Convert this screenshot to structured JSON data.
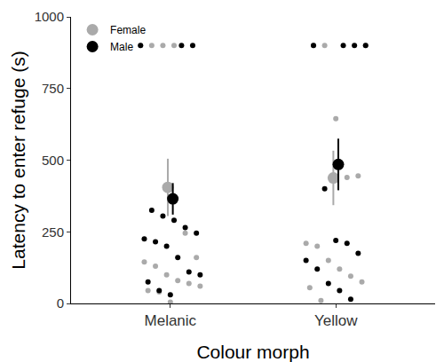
{
  "chart_data": {
    "type": "scatter",
    "x_label": "Colour morph",
    "y_label": "Latency to enter refuge (s)",
    "categories": [
      "Melanic",
      "Yellow"
    ],
    "ylim": [
      0,
      1000
    ],
    "yticks": [
      0,
      250,
      500,
      750,
      1000
    ],
    "grid": false,
    "legend": "top left",
    "series": [
      {
        "name": "Female",
        "color": "#aaaaaa",
        "values": [
          [
            900,
            900,
            900,
            900,
            245,
            160,
            145,
            130,
            100,
            80,
            70,
            60,
            45,
            40,
            5
          ],
          [
            900,
            900,
            900,
            645,
            440,
            445,
            210,
            200,
            150,
            120,
            95,
            75,
            55,
            10
          ]
        ],
        "mean": [
          405,
          438
        ],
        "error": [
          100,
          95
        ]
      },
      {
        "name": "Male",
        "color": "#000000",
        "values": [
          [
            900,
            900,
            900,
            325,
            305,
            290,
            265,
            245,
            225,
            215,
            200,
            160,
            110,
            100,
            75,
            45,
            30
          ],
          [
            900,
            900,
            900,
            900,
            400,
            220,
            210,
            175,
            150,
            120,
            70,
            45,
            15
          ]
        ],
        "mean": [
          365,
          485
        ],
        "error": [
          55,
          90
        ]
      }
    ]
  }
}
